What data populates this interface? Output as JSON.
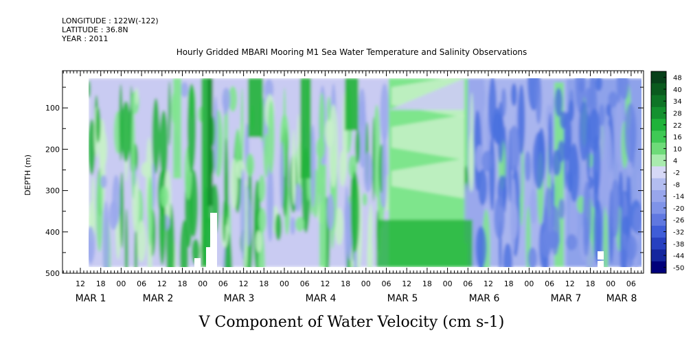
{
  "header": {
    "longitude": "LONGITUDE : 122W(-122)",
    "latitude": "LATITUDE : 36.8N",
    "year": "YEAR : 2011"
  },
  "chart_data": {
    "type": "heatmap",
    "title": "Hourly Gridded MBARI Mooring M1 Sea Water Temperature and Salinity Observations",
    "xlabel": "V Component of Water Velocity (cm s-1)",
    "ylabel": "DEPTH (m)",
    "y_ticks": [
      100,
      200,
      300,
      400,
      500
    ],
    "ylim": [
      500,
      10
    ],
    "x_hour_ticks": [
      "12",
      "18",
      "00",
      "06",
      "12",
      "18",
      "00",
      "06",
      "12",
      "18",
      "00",
      "06",
      "12",
      "18",
      "00",
      "06",
      "12",
      "18",
      "00",
      "06",
      "12",
      "18",
      "00",
      "06",
      "12",
      "18",
      "00",
      "06"
    ],
    "x_day_labels": [
      "MAR 1",
      "MAR 2",
      "MAR 3",
      "MAR 4",
      "MAR 5",
      "MAR 6",
      "MAR 7",
      "MAR 8"
    ],
    "colorbar": {
      "levels": [
        "48",
        "40",
        "34",
        "28",
        "22",
        "16",
        "10",
        "4",
        "-2",
        "-8",
        "-14",
        "-20",
        "-26",
        "-32",
        "-38",
        "-44",
        "-50"
      ],
      "min": -50,
      "max": 48
    },
    "colors": {
      "green_dark": "#0c4a14",
      "green_mid": "#1fb33a",
      "green_light": "#7ee58c",
      "green_pale": "#c7f1c8",
      "blue_pale": "#c9cbf2",
      "blue_light": "#9aa8ec",
      "blue_mid": "#4a70de",
      "blue_dark": "#0a1a8a",
      "navy": "#00007a"
    }
  }
}
